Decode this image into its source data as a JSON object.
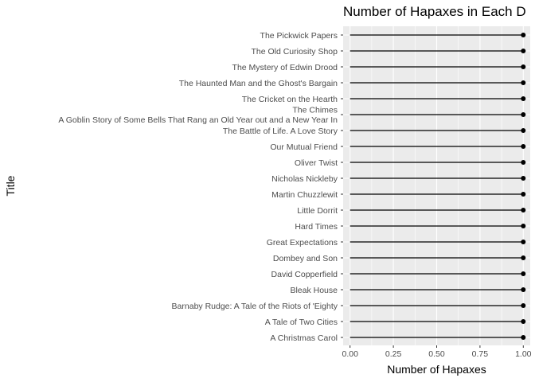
{
  "chart_data": {
    "type": "lollipop",
    "title": "Number of Hapaxes in Each D",
    "xlabel": "Number of Hapaxes",
    "ylabel": "Title",
    "xlim": [
      -0.04,
      1.04
    ],
    "xticks": [
      "0.00",
      "0.25",
      "0.50",
      "0.75",
      "1.00"
    ],
    "xtick_values": [
      0,
      0.25,
      0.5,
      0.75,
      1.0
    ],
    "grid": true,
    "panel_background": "#ebebeb",
    "grid_color": "#ffffff",
    "mark_color": "#000000",
    "categories": [
      "The Pickwick Papers",
      "The Old Curiosity Shop",
      "The Mystery of Edwin Drood",
      "The Haunted Man and the Ghost's Bargain",
      "The Cricket on the Hearth",
      "The Chimes\nA Goblin Story of Some Bells That Rang an Old Year out and a New Year In",
      "The Battle of Life. A Love Story",
      "Our Mutual Friend",
      "Oliver Twist",
      "Nicholas Nickleby",
      "Martin Chuzzlewit",
      "Little Dorrit",
      "Hard Times",
      "Great Expectations",
      "Dombey and Son",
      "David Copperfield",
      "Bleak House",
      "Barnaby Rudge: A Tale of the Riots of 'Eighty",
      "A Tale of Two Cities",
      "A Christmas Carol"
    ],
    "values": [
      1,
      1,
      1,
      1,
      1,
      1,
      1,
      1,
      1,
      1,
      1,
      1,
      1,
      1,
      1,
      1,
      1,
      1,
      1,
      1
    ]
  }
}
